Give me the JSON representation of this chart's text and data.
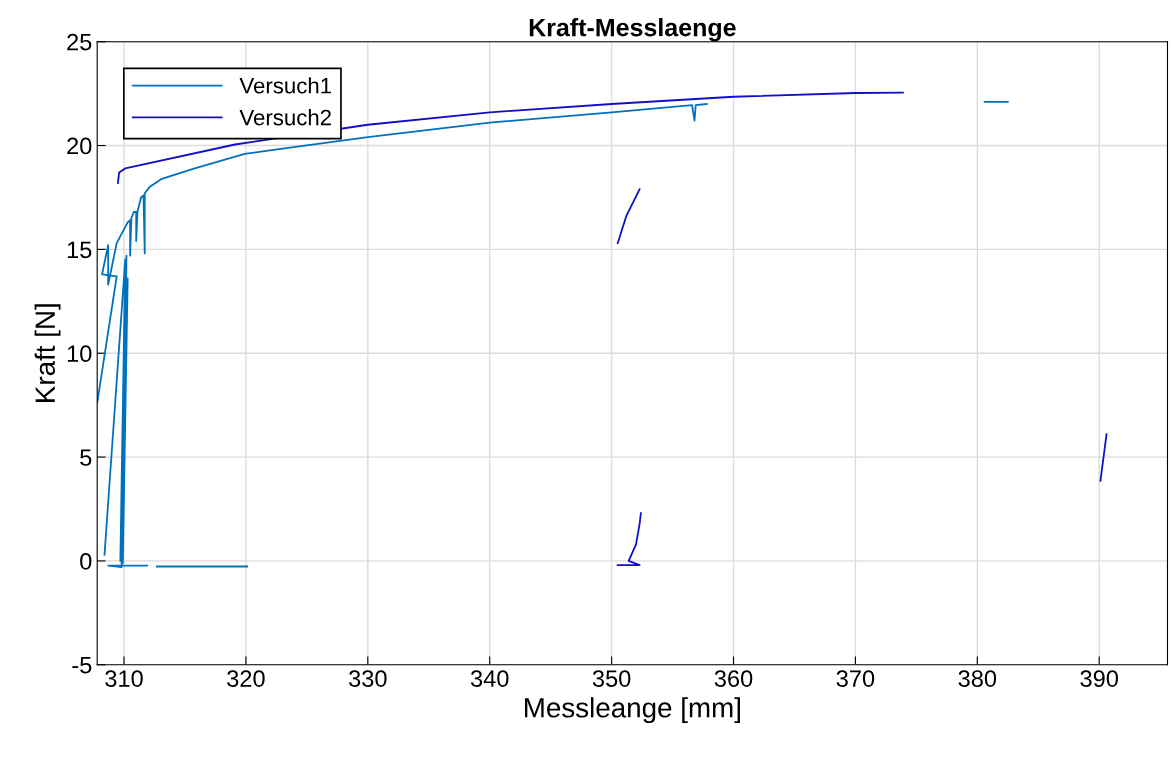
{
  "chart_data": {
    "type": "line",
    "title": "Kraft-Messlaenge",
    "xlabel": "Messleange [mm]",
    "ylabel": "Kraft [N]",
    "series": [
      {
        "name": "Versuch1",
        "color": "#0072bd",
        "x": [
          307.8,
          309.4,
          308.2,
          308.7,
          308.7,
          309.4,
          310.3,
          310.5,
          310.5,
          310.6,
          310.8,
          311.0,
          311.0,
          311.1,
          311.4,
          311.6,
          311.7,
          311.7,
          312.1,
          313.1,
          315.8,
          319.9,
          322.4,
          330,
          340,
          350,
          356.6,
          356.8,
          356.9,
          357.8,
          null,
          380.6,
          382.5,
          null,
          308.4,
          310.1,
          309.7,
          310.3,
          309.9,
          310.2,
          309.8,
          308.7,
          311.9,
          null,
          312.7,
          320.1
        ],
        "values": [
          7.6,
          13.7,
          13.8,
          15.2,
          13.3,
          15.3,
          16.3,
          16.4,
          14.7,
          16.5,
          16.8,
          16.8,
          15.4,
          16.8,
          17.5,
          17.6,
          14.8,
          17.7,
          18.0,
          18.4,
          18.9,
          19.6,
          19.8,
          20.4,
          21.1,
          21.6,
          21.95,
          21.2,
          21.95,
          22.0,
          null,
          22.1,
          22.1,
          null,
          0.3,
          14.5,
          0.0,
          13.6,
          -0.1,
          14.7,
          -0.3,
          -0.23,
          -0.23,
          null,
          -0.27,
          -0.27
        ]
      },
      {
        "name": "Versuch2",
        "color": "#1010c8",
        "x": [
          309.5,
          309.6,
          310.1,
          319.1,
          330,
          340,
          350,
          360,
          370,
          373.9,
          null,
          350.5,
          351.2,
          352.3,
          null,
          350.5,
          352.3,
          351.4,
          352.0,
          352.3,
          352.4,
          null,
          390.1,
          390.6
        ],
        "values": [
          18.2,
          18.7,
          18.9,
          20.05,
          21.0,
          21.6,
          22.0,
          22.35,
          22.53,
          22.55,
          null,
          15.3,
          16.6,
          17.9,
          null,
          -0.2,
          -0.2,
          0.0,
          0.8,
          1.8,
          2.3,
          null,
          3.86,
          6.1
        ]
      }
    ],
    "xlim": [
      307.8,
      395.6
    ],
    "xticks": [
      310,
      320,
      330,
      340,
      350,
      360,
      370,
      380,
      390
    ],
    "ylim": [
      -5,
      25
    ],
    "yticks": [
      -5,
      0,
      5,
      10,
      15,
      20,
      25
    ],
    "grid": true,
    "legend": "top left",
    "marker": "none",
    "line_style": "solid"
  }
}
